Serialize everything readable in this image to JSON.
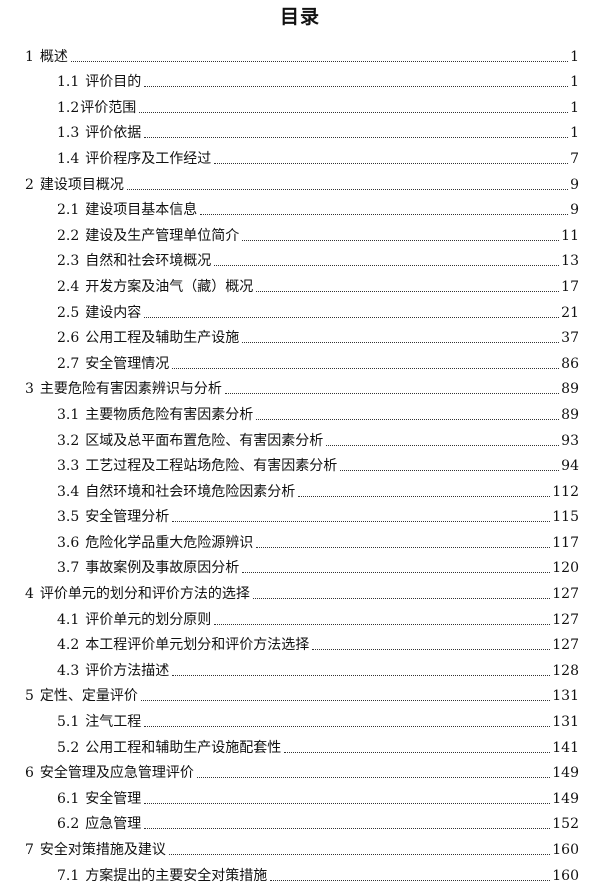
{
  "title": "目录",
  "entries": [
    {
      "num": "1",
      "label": "概述",
      "page": "1",
      "level": 1
    },
    {
      "num": "1.1",
      "label": "评价目的",
      "page": "1",
      "level": 2
    },
    {
      "num": "1.2",
      "label": "评价范围",
      "page": "1",
      "level": 2,
      "tight": true
    },
    {
      "num": "1.3",
      "label": "评价依据",
      "page": "1",
      "level": 2
    },
    {
      "num": "1.4",
      "label": "评价程序及工作经过",
      "page": "7",
      "level": 2
    },
    {
      "num": "2",
      "label": "建设项目概况",
      "page": "9",
      "level": 1
    },
    {
      "num": "2.1",
      "label": "建设项目基本信息",
      "page": "9",
      "level": 2
    },
    {
      "num": "2.2",
      "label": "建设及生产管理单位简介",
      "page": "11",
      "level": 2
    },
    {
      "num": "2.3",
      "label": "自然和社会环境概况",
      "page": "13",
      "level": 2
    },
    {
      "num": "2.4",
      "label": "开发方案及油气（藏）概况",
      "page": "17",
      "level": 2
    },
    {
      "num": "2.5",
      "label": "建设内容",
      "page": "21",
      "level": 2
    },
    {
      "num": "2.6",
      "label": "公用工程及辅助生产设施",
      "page": "37",
      "level": 2
    },
    {
      "num": "2.7",
      "label": "安全管理情况",
      "page": "86",
      "level": 2
    },
    {
      "num": "3",
      "label": "主要危险有害因素辨识与分析",
      "page": "89",
      "level": 1
    },
    {
      "num": "3.1",
      "label": "主要物质危险有害因素分析",
      "page": "89",
      "level": 2
    },
    {
      "num": "3.2",
      "label": "区域及总平面布置危险、有害因素分析",
      "page": "93",
      "level": 2
    },
    {
      "num": "3.3",
      "label": "工艺过程及工程站场危险、有害因素分析",
      "page": "94",
      "level": 2
    },
    {
      "num": "3.4",
      "label": "自然环境和社会环境危险因素分析",
      "page": "112",
      "level": 2
    },
    {
      "num": "3.5",
      "label": "安全管理分析",
      "page": "115",
      "level": 2
    },
    {
      "num": "3.6",
      "label": "危险化学品重大危险源辨识",
      "page": "117",
      "level": 2
    },
    {
      "num": "3.7",
      "label": "事故案例及事故原因分析",
      "page": "120",
      "level": 2
    },
    {
      "num": "4",
      "label": "评价单元的划分和评价方法的选择",
      "page": "127",
      "level": 1
    },
    {
      "num": "4.1",
      "label": "评价单元的划分原则",
      "page": "127",
      "level": 2
    },
    {
      "num": "4.2",
      "label": "本工程评价单元划分和评价方法选择",
      "page": "127",
      "level": 2
    },
    {
      "num": "4.3",
      "label": "评价方法描述",
      "page": "128",
      "level": 2
    },
    {
      "num": "5",
      "label": "定性、定量评价",
      "page": "131",
      "level": 1
    },
    {
      "num": "5.1",
      "label": "注气工程",
      "page": "131",
      "level": 2
    },
    {
      "num": "5.2",
      "label": "公用工程和辅助生产设施配套性",
      "page": "141",
      "level": 2
    },
    {
      "num": "6",
      "label": "安全管理及应急管理评价",
      "page": "149",
      "level": 1
    },
    {
      "num": "6.1",
      "label": "安全管理",
      "page": "149",
      "level": 2
    },
    {
      "num": "6.2",
      "label": "应急管理",
      "page": "152",
      "level": 2
    },
    {
      "num": "7",
      "label": "安全对策措施及建议",
      "page": "160",
      "level": 1
    },
    {
      "num": "7.1",
      "label": "方案提出的主要安全对策措施",
      "page": "160",
      "level": 2
    }
  ]
}
